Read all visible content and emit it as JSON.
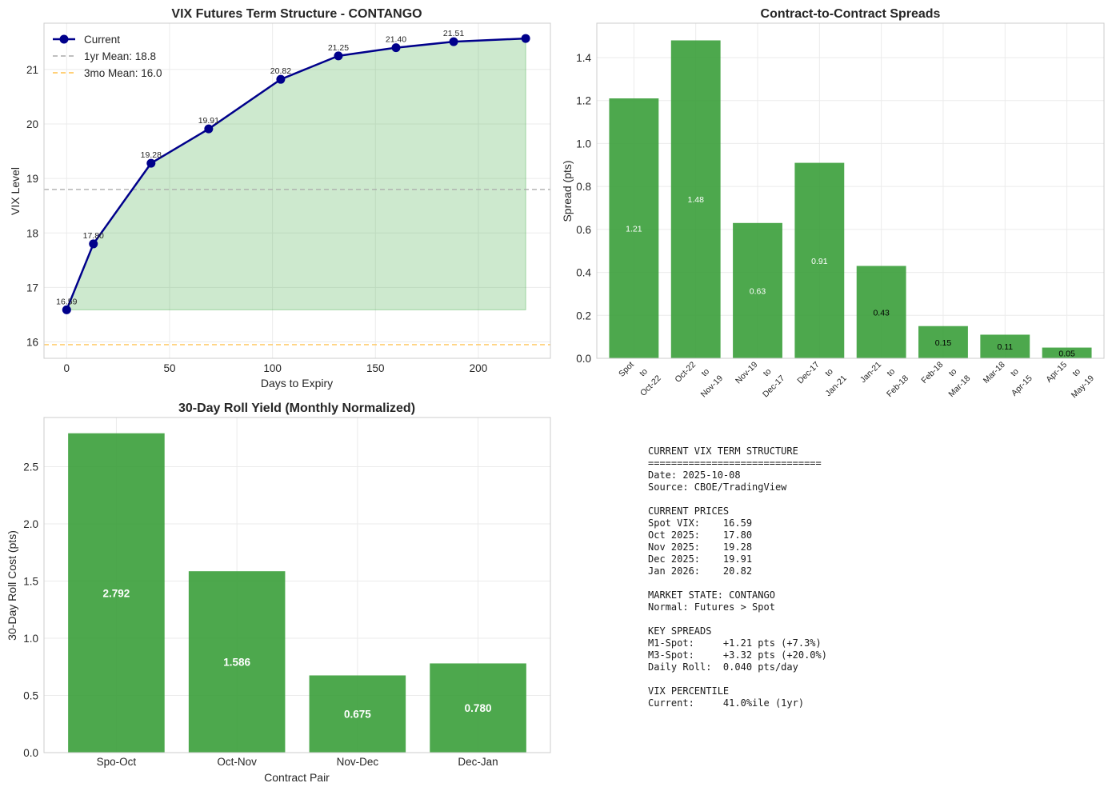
{
  "chart_data": [
    {
      "type": "line",
      "title": "VIX Futures Term Structure - CONTANGO",
      "xlabel": "Days to Expiry",
      "ylabel": "VIX Level",
      "xlim": [
        -11,
        235
      ],
      "ylim": [
        15.7,
        21.85
      ],
      "xticks": [
        0,
        50,
        100,
        150,
        200
      ],
      "yticks": [
        16,
        17,
        18,
        19,
        20,
        21
      ],
      "grid": true,
      "legend": "top-left",
      "series": [
        {
          "name": "Current",
          "color": "#00008b",
          "x": [
            0,
            13,
            41,
            69,
            104,
            132,
            160,
            188,
            223
          ],
          "y": [
            16.59,
            17.8,
            19.28,
            19.91,
            20.82,
            21.25,
            21.4,
            21.51,
            21.57
          ],
          "labels": [
            "16.59",
            "17.80",
            "19.28",
            "19.91",
            "20.82",
            "21.25",
            "21.40",
            "21.51",
            ""
          ]
        }
      ],
      "reference_lines": [
        {
          "name": "1yr Mean: 18.8",
          "value": 18.8,
          "color": "#aaaaaa"
        },
        {
          "name": "3mo Mean: 16.0",
          "value": 15.95,
          "color": "#ffc04d"
        }
      ],
      "fill_color": "#4caf50"
    },
    {
      "type": "bar",
      "title": "Contract-to-Contract Spreads",
      "xlabel": "",
      "ylabel": "Spread (pts)",
      "ylim": [
        0,
        1.56
      ],
      "yticks": [
        0.0,
        0.2,
        0.4,
        0.6,
        0.8,
        1.0,
        1.2,
        1.4
      ],
      "grid": true,
      "color": "#3a9e3a",
      "categories": [
        [
          "Spot",
          "to",
          "Oct-22"
        ],
        [
          "Oct-22",
          "to",
          "Nov-19"
        ],
        [
          "Nov-19",
          "to",
          "Dec-17"
        ],
        [
          "Dec-17",
          "to",
          "Jan-21"
        ],
        [
          "Jan-21",
          "to",
          "Feb-18"
        ],
        [
          "Feb-18",
          "to",
          "Mar-18"
        ],
        [
          "Mar-18",
          "to",
          "Apr-15"
        ],
        [
          "Apr-15",
          "to",
          "May-19"
        ]
      ],
      "values": [
        1.21,
        1.48,
        0.63,
        0.91,
        0.43,
        0.15,
        0.11,
        0.05
      ],
      "labels": [
        "1.21",
        "1.48",
        "0.63",
        "0.91",
        "0.43",
        "0.15",
        "0.11",
        "0.05"
      ]
    },
    {
      "type": "bar",
      "title": "30-Day Roll Yield (Monthly Normalized)",
      "xlabel": "Contract Pair",
      "ylabel": "30-Day Roll Cost (pts)",
      "ylim": [
        0,
        2.93
      ],
      "yticks": [
        0.0,
        0.5,
        1.0,
        1.5,
        2.0,
        2.5
      ],
      "grid": true,
      "color": "#3a9e3a",
      "categories": [
        "Spo-Oct",
        "Oct-Nov",
        "Nov-Dec",
        "Dec-Jan"
      ],
      "values": [
        2.792,
        1.586,
        0.675,
        0.78
      ],
      "labels": [
        "2.792",
        "1.586",
        "0.675",
        "0.780"
      ]
    }
  ],
  "summary": {
    "lines": [
      "CURRENT VIX TERM STRUCTURE",
      "==============================",
      "Date: 2025-10-08",
      "Source: CBOE/TradingView",
      "",
      "CURRENT PRICES",
      "Spot VIX:    16.59",
      "Oct 2025:    17.80",
      "Nov 2025:    19.28",
      "Dec 2025:    19.91",
      "Jan 2026:    20.82",
      "",
      "MARKET STATE: CONTANGO",
      "Normal: Futures > Spot",
      "",
      "KEY SPREADS",
      "M1-Spot:     +1.21 pts (+7.3%)",
      "M3-Spot:     +3.32 pts (+20.0%)",
      "Daily Roll:  0.040 pts/day",
      "",
      "VIX PERCENTILE",
      "Current:     41.0%ile (1yr)"
    ]
  }
}
